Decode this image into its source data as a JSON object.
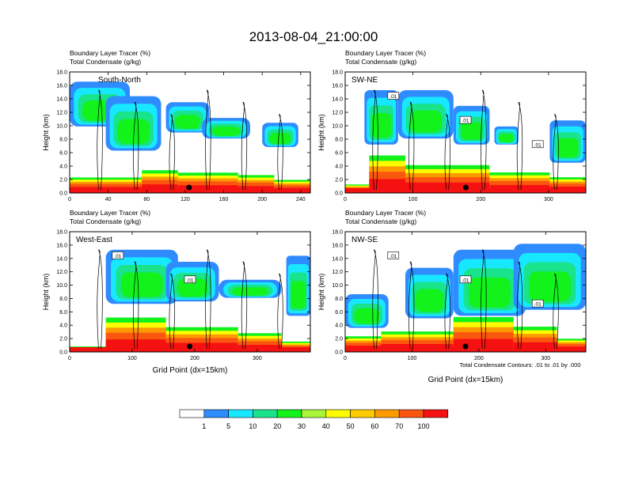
{
  "figure": {
    "title": "2013-08-04_21:00:00",
    "footnote": "Total Condensate Contours: .01 to .01 by .000",
    "x_axis_label": "Grid Point (dx=15km)"
  },
  "legend": {
    "colors": [
      "#ffffff",
      "#2f8cff",
      "#18e8ff",
      "#19e38b",
      "#12f21b",
      "#a8f539",
      "#fdfd00",
      "#fdcb00",
      "#fc9b00",
      "#fb5610",
      "#f51111"
    ],
    "labels": [
      "1",
      "5",
      "10",
      "20",
      "30",
      "40",
      "50",
      "60",
      "70",
      "100"
    ]
  },
  "chart_data": [
    {
      "type": "heatmap",
      "title": "South-North",
      "header": [
        "Boundary Layer Tracer   (%)",
        "Total Condensate   (g/kg)"
      ],
      "ylabel": "Height (km)",
      "xlabel": "",
      "xlim": [
        0,
        250
      ],
      "ylim": [
        0,
        18
      ],
      "xticks": [
        "0",
        "40",
        "80",
        "120",
        "160",
        "200",
        "240"
      ],
      "yticks": [
        "0.0",
        "2.0",
        "4.0",
        "6.0",
        "8.0",
        "10.0",
        "12.0",
        "14.0",
        "16.0",
        "18.0"
      ],
      "contour_labels": [],
      "terrain_note": "low terrain with dark marker near x=125",
      "marker_x": 124
    },
    {
      "type": "heatmap",
      "title": "SW-NE",
      "header": [
        "Boundary Layer Tracer   (%)",
        "Total Condensate   (g/kg)"
      ],
      "ylabel": "Height (km)",
      "xlabel": "",
      "xlim": [
        0,
        355
      ],
      "ylim": [
        0,
        18
      ],
      "xticks": [
        "0",
        "100",
        "200",
        "300"
      ],
      "yticks": [
        "0.0",
        "2.0",
        "4.0",
        "6.0",
        "8.0",
        "10.0",
        "12.0",
        "14.0",
        "16.0",
        "18.0"
      ],
      "contour_labels": [
        ".01",
        ".01",
        ".01"
      ],
      "marker_x": 178
    },
    {
      "type": "heatmap",
      "title": "West-East",
      "header": [
        "Boundary Layer Tracer   (%)",
        "Total Condensate   (g/kg)"
      ],
      "ylabel": "Height (km)",
      "xlabel": "Grid Point (dx=15km)",
      "xlim": [
        0,
        385
      ],
      "ylim": [
        0,
        18
      ],
      "xticks": [
        "0",
        "100",
        "200",
        "300"
      ],
      "yticks": [
        "0.0",
        "2.0",
        "4.0",
        "6.0",
        "8.0",
        "10.0",
        "12.0",
        "14.0",
        "16.0",
        "18.0"
      ],
      "contour_labels": [
        ".01",
        ".01"
      ],
      "marker_x": 192
    },
    {
      "type": "heatmap",
      "title": "NW-SE",
      "header": [
        "Boundary Layer Tracer   (%)",
        "Total Condensate   (g/kg)"
      ],
      "ylabel": "Height (km)",
      "xlabel": "Grid Point (dx=15km)",
      "xlim": [
        0,
        360
      ],
      "ylim": [
        0,
        18
      ],
      "xticks": [
        "0",
        "100",
        "200",
        "300"
      ],
      "yticks": [
        "0.0",
        "2.0",
        "4.0",
        "6.0",
        "8.0",
        "10.0",
        "12.0",
        "14.0",
        "16.0",
        "18.0"
      ],
      "contour_labels": [
        ".01",
        ".01",
        ".01"
      ],
      "marker_x": 180
    }
  ]
}
